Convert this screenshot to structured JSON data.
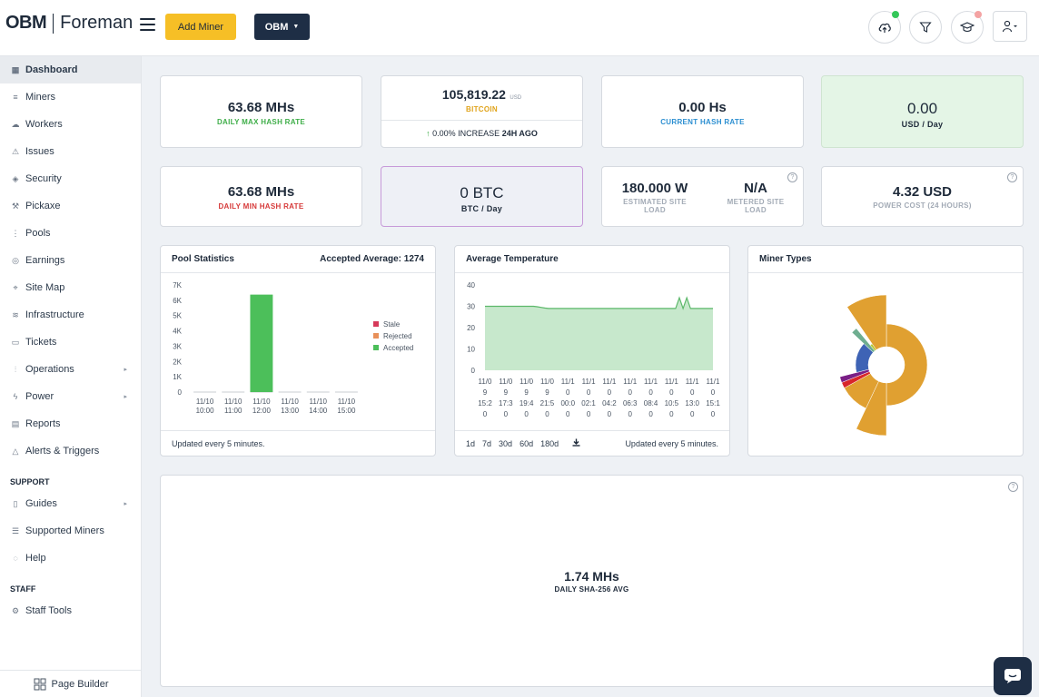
{
  "header": {
    "logo_brand": "OBM",
    "logo_product": "Foreman",
    "add_miner_label": "Add Miner",
    "org_label": "OBM",
    "colors": {
      "add_miner": "#f6bf26",
      "org": "#1e2e45",
      "upload_dot": "#34c759",
      "academy_dot": "#f4a3a3"
    }
  },
  "sidebar": {
    "items": [
      {
        "label": "Dashboard",
        "icon": "grid-icon",
        "active": true
      },
      {
        "label": "Miners",
        "icon": "server-icon"
      },
      {
        "label": "Workers",
        "icon": "cloud-icon"
      },
      {
        "label": "Issues",
        "icon": "warning-icon"
      },
      {
        "label": "Security",
        "icon": "shield-icon"
      },
      {
        "label": "Pickaxe",
        "icon": "pickaxe-icon"
      },
      {
        "label": "Pools",
        "icon": "pools-icon"
      },
      {
        "label": "Earnings",
        "icon": "coins-icon"
      },
      {
        "label": "Site Map",
        "icon": "map-icon"
      },
      {
        "label": "Infrastructure",
        "icon": "layers-icon"
      },
      {
        "label": "Tickets",
        "icon": "ticket-icon"
      },
      {
        "label": "Operations",
        "icon": "sliders-icon",
        "expandable": true
      },
      {
        "label": "Power",
        "icon": "bolt-icon",
        "expandable": true
      },
      {
        "label": "Reports",
        "icon": "report-icon"
      },
      {
        "label": "Alerts & Triggers",
        "icon": "alert-icon"
      }
    ],
    "support_title": "SUPPORT",
    "support_items": [
      {
        "label": "Guides",
        "icon": "book-icon",
        "expandable": true
      },
      {
        "label": "Supported Miners",
        "icon": "list-icon"
      },
      {
        "label": "Help",
        "icon": "help-icon"
      }
    ],
    "staff_title": "STAFF",
    "staff_items": [
      {
        "label": "Staff Tools",
        "icon": "wrench-icon"
      }
    ],
    "page_builder": "Page Builder"
  },
  "stats": {
    "daily_max": {
      "value": "63.68 MHs",
      "label": "DAILY MAX HASH RATE",
      "color": "#3fae49"
    },
    "bitcoin": {
      "value": "105,819.22",
      "unit": "USD",
      "label": "BITCOIN",
      "change_pct": "0.00% INCREASE",
      "change_when": "24H AGO",
      "color": "#e0a31a"
    },
    "current": {
      "value": "0.00 Hs",
      "label": "CURRENT HASH RATE",
      "color": "#2c8fd1"
    },
    "usd_day": {
      "value": "0.00",
      "label": "USD / Day"
    },
    "daily_min": {
      "value": "63.68 MHs",
      "label": "DAILY MIN HASH RATE",
      "color": "#d63a3a"
    },
    "btc_day": {
      "value": "0 BTC",
      "label": "BTC / Day"
    },
    "site_load": {
      "value": "180.000 W",
      "label": "ESTIMATED SITE LOAD",
      "metered_value": "N/A",
      "metered_label": "METERED SITE LOAD"
    },
    "power_cost": {
      "value": "4.32 USD",
      "label": "POWER COST (24 HOURS)"
    }
  },
  "pool_stats": {
    "title": "Pool Statistics",
    "accepted_avg": "Accepted Average: 1274",
    "footer": "Updated every 5 minutes.",
    "chart_data": {
      "type": "bar",
      "categories": [
        [
          "11/10",
          "10:00"
        ],
        [
          "11/10",
          "11:00"
        ],
        [
          "11/10",
          "12:00"
        ],
        [
          "11/10",
          "13:00"
        ],
        [
          "11/10",
          "14:00"
        ],
        [
          "11/10",
          "15:00"
        ]
      ],
      "series": [
        {
          "name": "Stale",
          "color": "#d63a5a",
          "values": [
            0,
            0,
            0,
            0,
            0,
            0
          ]
        },
        {
          "name": "Rejected",
          "color": "#e8905a",
          "values": [
            0,
            0,
            0,
            0,
            0,
            0
          ]
        },
        {
          "name": "Accepted",
          "color": "#4cbf5a",
          "values": [
            0,
            0,
            6370,
            0,
            0,
            0
          ]
        }
      ],
      "yticks": [
        "0",
        "1K",
        "2K",
        "3K",
        "4K",
        "5K",
        "6K",
        "7K"
      ],
      "ylim": [
        0,
        7000
      ],
      "legend": "right"
    }
  },
  "temperature": {
    "title": "Average Temperature",
    "footer": "Updated every 5 minutes.",
    "ranges": [
      "1d",
      "7d",
      "30d",
      "60d",
      "180d"
    ],
    "chart_data": {
      "type": "area",
      "color": "#5cb86a",
      "fill": "#c7e8cc",
      "yticks": [
        "0",
        "10",
        "20",
        "30",
        "40"
      ],
      "ylim": [
        0,
        40
      ],
      "xticks": [
        [
          "11/0",
          "9",
          "15:2",
          "0"
        ],
        [
          "11/0",
          "9",
          "17:3",
          "0"
        ],
        [
          "11/0",
          "9",
          "19:4",
          "0"
        ],
        [
          "11/0",
          "9",
          "21:5",
          "0"
        ],
        [
          "11/1",
          "0",
          "00:0",
          "0"
        ],
        [
          "11/1",
          "0",
          "02:1",
          "0"
        ],
        [
          "11/1",
          "0",
          "04:2",
          "0"
        ],
        [
          "11/1",
          "0",
          "06:3",
          "0"
        ],
        [
          "11/1",
          "0",
          "08:4",
          "0"
        ],
        [
          "11/1",
          "0",
          "10:5",
          "0"
        ],
        [
          "11/1",
          "0",
          "13:0",
          "0"
        ],
        [
          "11/1",
          "0",
          "15:1",
          "0"
        ]
      ],
      "values": [
        30,
        30,
        30,
        30,
        30,
        30,
        30,
        30,
        30,
        30,
        30,
        30,
        30,
        30,
        29.8,
        29.5,
        29.2,
        29,
        29,
        29,
        29,
        29,
        29,
        29,
        29,
        29,
        29,
        29,
        29,
        29,
        29,
        29,
        29,
        29,
        29,
        29,
        29,
        29,
        29,
        29,
        29,
        29,
        29,
        29,
        29,
        29,
        29,
        29,
        29,
        29,
        29,
        29,
        34,
        29,
        34,
        29,
        29,
        29,
        29,
        29,
        29,
        29
      ]
    }
  },
  "miner_types": {
    "title": "Miner Types",
    "chart_data": {
      "type": "pie",
      "slices": [
        {
          "value": 1,
          "radius": 45,
          "color": "#e0a031"
        },
        {
          "value": 0.14,
          "radius": 78,
          "color": "#e0a031"
        },
        {
          "value": 0.2,
          "radius": 53,
          "color": "#e0a031"
        },
        {
          "value": 0.04,
          "radius": 53,
          "color": "#d8262b"
        },
        {
          "value": 0.04,
          "radius": 53,
          "color": "#7a1f86"
        },
        {
          "value": 0.32,
          "radius": 34,
          "color": "#3e63b5"
        },
        {
          "value": 0.04,
          "radius": 52,
          "color": "#6fae90"
        },
        {
          "value": 0.03,
          "radius": 28,
          "color": "#b6c931"
        },
        {
          "value": 0.19,
          "radius": 77,
          "color": "#e0a031"
        }
      ]
    }
  },
  "sha": {
    "value": "1.74 MHs",
    "label": "DAILY SHA-256 AVG"
  }
}
